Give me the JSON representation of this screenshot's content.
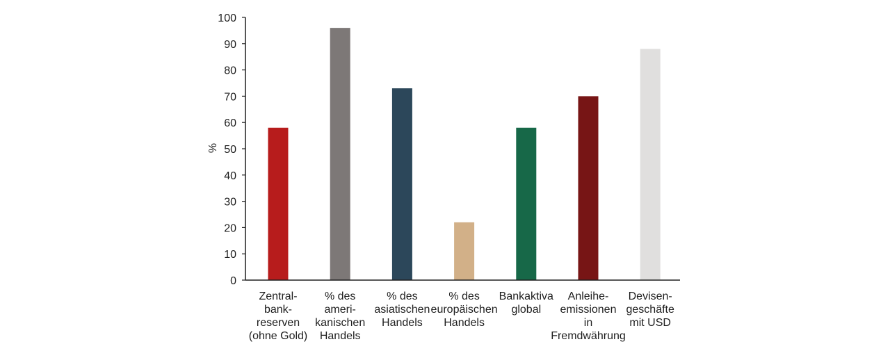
{
  "chart_data": {
    "type": "bar",
    "title": "",
    "xlabel": "",
    "ylabel": "%",
    "ylim": [
      0,
      100
    ],
    "yticks": [
      0,
      10,
      20,
      30,
      40,
      50,
      60,
      70,
      80,
      90,
      100
    ],
    "grid": false,
    "legend": "none",
    "categories": [
      [
        "Zentral-",
        "bank-",
        "reserven",
        "(ohne Gold)"
      ],
      [
        "% des",
        "ameri-",
        "kanischen",
        "Handels"
      ],
      [
        "% des",
        "asiatischen",
        "Handels"
      ],
      [
        "% des",
        "europäischen",
        "Handels"
      ],
      [
        "Bankaktiva",
        "global"
      ],
      [
        "Anleihe-",
        "emissionen",
        "in",
        "Fremdwährung"
      ],
      [
        "Devisen-",
        "geschäfte",
        "mit USD"
      ]
    ],
    "values": [
      58,
      96,
      73,
      22,
      58,
      70,
      88
    ],
    "colors": [
      "#b71c1c",
      "#7d7877",
      "#2c475a",
      "#d2b088",
      "#176848",
      "#771515",
      "#e0dfde"
    ]
  }
}
